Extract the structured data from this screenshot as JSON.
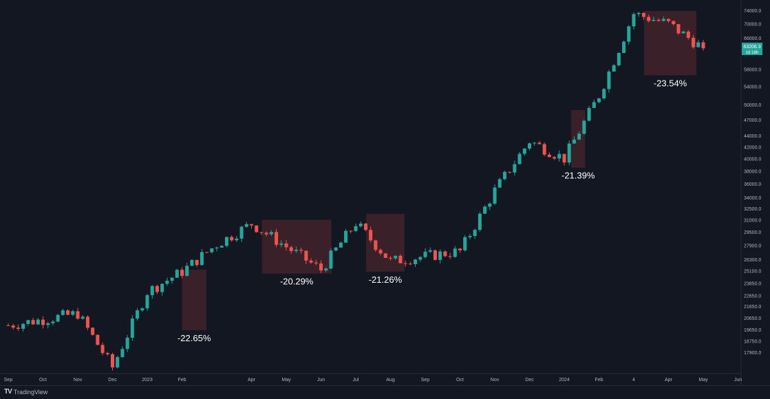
{
  "chart_data": {
    "type": "candlestick",
    "y_scale": "log",
    "ylim": [
      16800,
      75500
    ],
    "y_ticks": [
      "74000.0",
      "70000.0",
      "66000.0",
      "62000.0",
      "58000.0",
      "54000.0",
      "50000.0",
      "47000.0",
      "44000.0",
      "42000.0",
      "40000.0",
      "38000.0",
      "36000.0",
      "34000.0",
      "32500.0",
      "31000.0",
      "29500.0",
      "27900.0",
      "26300.0",
      "25100.0",
      "23850.0",
      "22650.0",
      "21650.0",
      "20650.0",
      "19650.0",
      "18750.0",
      "17900.0"
    ],
    "x_ticks": [
      "Sep",
      "Oct",
      "Nov",
      "Dec",
      "2023",
      "Feb",
      "Apr",
      "May",
      "Jun",
      "Jul",
      "Aug",
      "Sep",
      "Oct",
      "Nov",
      "Dec",
      "2024",
      "Feb",
      "4",
      "Apr",
      "May",
      "Jun"
    ],
    "last_price": "63206.3",
    "last_price_sub": "1d 18h",
    "colors": {
      "up": "#26a69a",
      "down": "#ef5350",
      "background": "#131722",
      "box": "#ef5350",
      "label": "#ffffff"
    },
    "drawdowns": [
      {
        "label": "-22.65%",
        "start": "Feb 2023",
        "end": "Mar 2023",
        "high": 25200,
        "low": 19600
      },
      {
        "label": "-20.29%",
        "start": "Apr 2023",
        "end": "Jun 2023",
        "high": 31000,
        "low": 24800
      },
      {
        "label": "-21.26%",
        "start": "Jul 2023",
        "end": "Aug 2023",
        "high": 31800,
        "low": 25000
      },
      {
        "label": "-21.39%",
        "start": "Jan 2024",
        "end": "Jan 2024",
        "high": 48900,
        "low": 38500
      },
      {
        "label": "-23.54%",
        "start": "Mar 2024",
        "end": "May 2024",
        "high": 73800,
        "low": 56500
      }
    ],
    "price_path": [
      {
        "date": "Sep 2022",
        "close": 20000
      },
      {
        "date": "Nov 2022",
        "close": 21000
      },
      {
        "date": "Dec 2022",
        "close": 16800
      },
      {
        "date": "Jan 2023",
        "close": 23000
      },
      {
        "date": "Feb 2023",
        "close": 25000
      },
      {
        "date": "Mar 2023",
        "close": 28000
      },
      {
        "date": "Apr 2023",
        "close": 30500
      },
      {
        "date": "Jun 2023",
        "close": 25200
      },
      {
        "date": "Jul 2023",
        "close": 30600
      },
      {
        "date": "Aug 2023",
        "close": 26100
      },
      {
        "date": "Oct 2023",
        "close": 27200
      },
      {
        "date": "Nov 2023",
        "close": 35000
      },
      {
        "date": "Dec 2023",
        "close": 43000
      },
      {
        "date": "Jan 2024",
        "close": 40000
      },
      {
        "date": "Feb 2024",
        "close": 52000
      },
      {
        "date": "Mar 2024",
        "close": 73000
      },
      {
        "date": "Apr 2024",
        "close": 70000
      },
      {
        "date": "May 2024",
        "close": 63206
      }
    ]
  },
  "footer": {
    "brand": "TradingView"
  }
}
